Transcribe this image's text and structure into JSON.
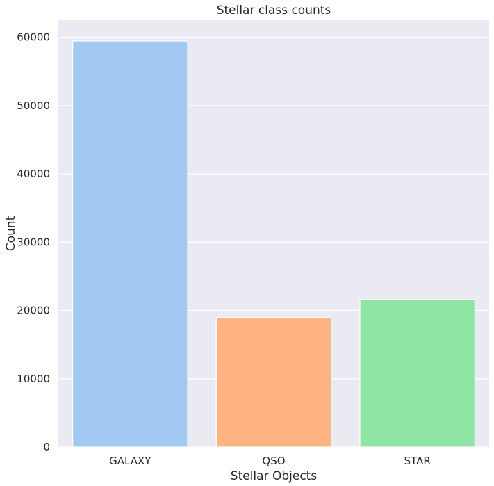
{
  "chart_data": {
    "type": "bar",
    "title": "Stellar class counts",
    "xlabel": "Stellar Objects",
    "ylabel": "Count",
    "categories": [
      "GALAXY",
      "QSO",
      "STAR"
    ],
    "values": [
      59445,
      18961,
      21594
    ],
    "ylim": [
      0,
      62500
    ],
    "yticks": [
      0,
      10000,
      20000,
      30000,
      40000,
      50000,
      60000
    ],
    "grid": true,
    "legend": "none",
    "colors": {
      "background": "#eaeaf2",
      "grid": "#ffffff",
      "bars": [
        "#a1c9f4",
        "#ffb482",
        "#8de5a1"
      ],
      "bar_edge": "#ffffff",
      "text": "#262626"
    }
  }
}
